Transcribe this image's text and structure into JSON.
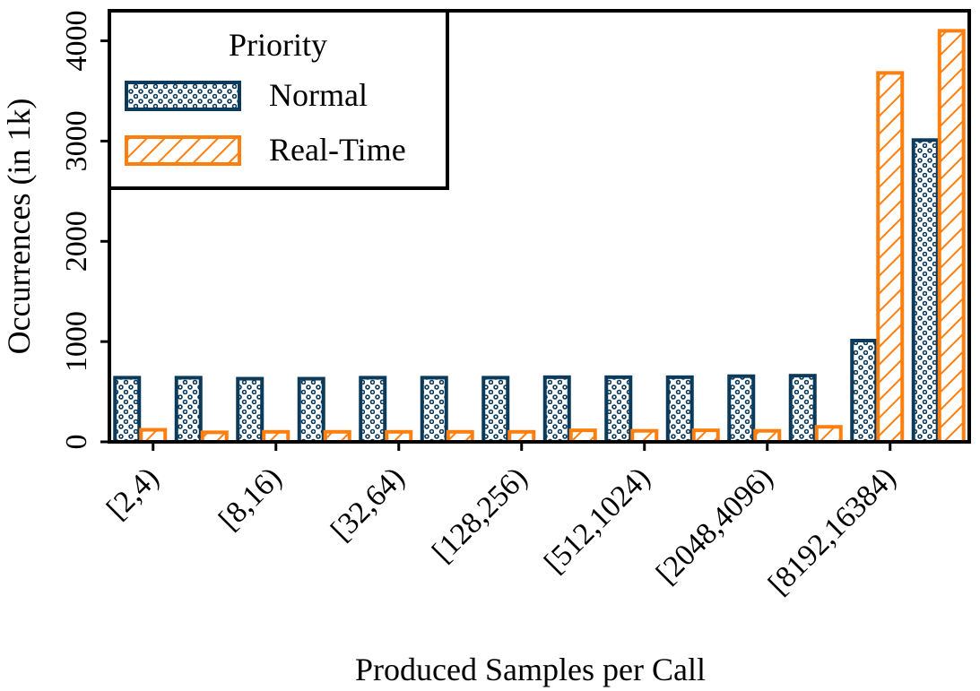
{
  "chart_data": {
    "type": "bar",
    "xlabel": "Produced Samples per Call",
    "ylabel": "Occurrences (in 1k)",
    "ylim": [
      0,
      4300
    ],
    "yticks": [
      0,
      1000,
      2000,
      3000,
      4000
    ],
    "xtick_labels": [
      "[2,4)",
      "[8,16)",
      "[32,64)",
      "[128,256)",
      "[512,1024)",
      "[2048,4096)",
      "[8192,16384)"
    ],
    "xtick_positions": [
      1,
      3,
      5,
      7,
      9,
      11,
      13
    ],
    "x": [
      1,
      2,
      3,
      4,
      5,
      6,
      7,
      8,
      9,
      10,
      11,
      12,
      13,
      14
    ],
    "series": [
      {
        "name": "Normal",
        "color": "#0b3a5b",
        "pattern": "dots",
        "values": [
          640,
          640,
          630,
          630,
          640,
          640,
          640,
          645,
          645,
          645,
          655,
          660,
          1010,
          3010
        ]
      },
      {
        "name": "Real-Time",
        "color": "#ff7f0e",
        "pattern": "hatch",
        "values": [
          120,
          95,
          100,
          100,
          100,
          100,
          100,
          115,
          110,
          115,
          110,
          150,
          3680,
          4100
        ]
      }
    ],
    "legend": {
      "title": "Priority",
      "placement": "top-left"
    },
    "grid": false
  }
}
